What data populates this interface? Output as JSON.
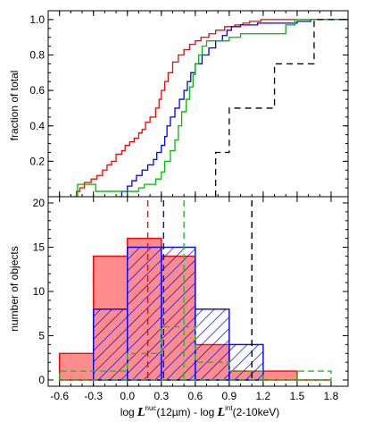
{
  "chart_data": [
    {
      "type": "line",
      "panel": "top",
      "step": true,
      "ylabel": "fraction of total",
      "xlim": [
        -0.7,
        1.95
      ],
      "ylim": [
        0,
        1.05
      ],
      "yticks": [
        0.2,
        0.4,
        0.6,
        0.8,
        1.0
      ],
      "ytick_labels": [
        "0.2",
        "0.4",
        "0.6",
        "0.8",
        "1.0"
      ],
      "grid": false,
      "series": [
        {
          "color": "#ff0000",
          "dash": "solid",
          "points": [
            [
              -0.48,
              0.0
            ],
            [
              -0.45,
              0.03
            ],
            [
              -0.42,
              0.05
            ],
            [
              -0.38,
              0.08
            ],
            [
              -0.32,
              0.1
            ],
            [
              -0.27,
              0.12
            ],
            [
              -0.22,
              0.15
            ],
            [
              -0.18,
              0.18
            ],
            [
              -0.14,
              0.2
            ],
            [
              -0.1,
              0.24
            ],
            [
              -0.05,
              0.26
            ],
            [
              -0.02,
              0.29
            ],
            [
              0.02,
              0.31
            ],
            [
              0.06,
              0.33
            ],
            [
              0.1,
              0.36
            ],
            [
              0.13,
              0.38
            ],
            [
              0.16,
              0.42
            ],
            [
              0.2,
              0.45
            ],
            [
              0.25,
              0.5
            ],
            [
              0.28,
              0.55
            ],
            [
              0.3,
              0.6
            ],
            [
              0.33,
              0.65
            ],
            [
              0.36,
              0.7
            ],
            [
              0.4,
              0.76
            ],
            [
              0.45,
              0.8
            ],
            [
              0.5,
              0.83
            ],
            [
              0.55,
              0.86
            ],
            [
              0.6,
              0.88
            ],
            [
              0.65,
              0.9
            ],
            [
              0.72,
              0.92
            ],
            [
              0.78,
              0.94
            ],
            [
              0.86,
              0.96
            ],
            [
              0.95,
              0.97
            ],
            [
              1.02,
              0.98
            ],
            [
              1.08,
              0.99
            ],
            [
              1.18,
              1.0
            ],
            [
              1.95,
              1.0
            ]
          ]
        },
        {
          "color": "#0000ff",
          "dash": "solid",
          "points": [
            [
              -0.08,
              0.0
            ],
            [
              -0.05,
              0.03
            ],
            [
              0.0,
              0.06
            ],
            [
              0.04,
              0.09
            ],
            [
              0.08,
              0.12
            ],
            [
              0.13,
              0.15
            ],
            [
              0.18,
              0.18
            ],
            [
              0.23,
              0.21
            ],
            [
              0.26,
              0.25
            ],
            [
              0.3,
              0.29
            ],
            [
              0.33,
              0.34
            ],
            [
              0.35,
              0.4
            ],
            [
              0.38,
              0.45
            ],
            [
              0.42,
              0.5
            ],
            [
              0.46,
              0.55
            ],
            [
              0.5,
              0.6
            ],
            [
              0.53,
              0.65
            ],
            [
              0.56,
              0.7
            ],
            [
              0.6,
              0.75
            ],
            [
              0.66,
              0.8
            ],
            [
              0.72,
              0.84
            ],
            [
              0.78,
              0.88
            ],
            [
              0.84,
              0.91
            ],
            [
              0.88,
              0.94
            ],
            [
              0.92,
              0.96
            ],
            [
              1.0,
              0.97
            ],
            [
              1.15,
              0.98
            ],
            [
              1.5,
              0.99
            ],
            [
              1.62,
              1.0
            ],
            [
              1.95,
              1.0
            ]
          ]
        },
        {
          "color": "#00bb00",
          "dash": "solid",
          "points": [
            [
              -0.48,
              0.0
            ],
            [
              -0.44,
              0.07
            ],
            [
              -0.3,
              0.07
            ],
            [
              -0.28,
              0.03
            ],
            [
              -0.26,
              0.03
            ],
            [
              0.1,
              0.05
            ],
            [
              0.15,
              0.07
            ],
            [
              0.25,
              0.1
            ],
            [
              0.3,
              0.14
            ],
            [
              0.33,
              0.2
            ],
            [
              0.38,
              0.26
            ],
            [
              0.42,
              0.32
            ],
            [
              0.45,
              0.4
            ],
            [
              0.48,
              0.48
            ],
            [
              0.52,
              0.55
            ],
            [
              0.55,
              0.62
            ],
            [
              0.58,
              0.69
            ],
            [
              0.6,
              0.75
            ],
            [
              0.63,
              0.8
            ],
            [
              0.66,
              0.85
            ],
            [
              0.7,
              0.88
            ],
            [
              0.9,
              0.9
            ],
            [
              1.0,
              0.92
            ],
            [
              1.4,
              0.97
            ],
            [
              1.48,
              1.0
            ],
            [
              1.95,
              1.0
            ]
          ]
        },
        {
          "color": "#000000",
          "dash": "dashed",
          "points": [
            [
              0.78,
              0.0
            ],
            [
              0.78,
              0.25
            ],
            [
              0.9,
              0.25
            ],
            [
              0.9,
              0.5
            ],
            [
              1.3,
              0.5
            ],
            [
              1.3,
              0.75
            ],
            [
              1.65,
              0.75
            ],
            [
              1.65,
              1.0
            ],
            [
              1.95,
              1.0
            ]
          ]
        }
      ]
    },
    {
      "type": "bar",
      "panel": "bottom",
      "histogram": true,
      "xlabel": "log L^nuc(12µm) - log L^int(2-10keV)",
      "ylabel": "number of objects",
      "xlim": [
        -0.7,
        1.95
      ],
      "ylim": [
        0,
        20
      ],
      "xticks": [
        -0.6,
        -0.3,
        0.0,
        0.3,
        0.6,
        0.9,
        1.2,
        1.5,
        1.8
      ],
      "xtick_labels": [
        "-0.6",
        "-0.3",
        "0.0",
        "0.3",
        "0.6",
        "0.9",
        "1.2",
        "1.5",
        "1.8"
      ],
      "yticks": [
        0,
        5,
        10,
        15,
        20
      ],
      "ytick_labels": [
        "0",
        "5",
        "10",
        "15",
        "20"
      ],
      "bin_edges": [
        -0.6,
        -0.3,
        0.0,
        0.3,
        0.6,
        0.9,
        1.2,
        1.5,
        1.8
      ],
      "series": [
        {
          "color": "#ff0000",
          "style": "filled",
          "counts": [
            3,
            14,
            16,
            14,
            4,
            1,
            1,
            0
          ],
          "median": 0.18
        },
        {
          "color": "#0000ff",
          "style": "hatched",
          "counts": [
            0,
            8,
            15,
            15,
            8,
            4,
            0,
            0
          ],
          "median": 0.32
        },
        {
          "color": "#00bb00",
          "style": "outline",
          "counts": [
            1,
            1,
            3,
            6,
            2,
            1,
            0,
            1
          ],
          "median": 0.5
        },
        {
          "color": "#000000",
          "style": "dashed",
          "counts": [
            0,
            0,
            0,
            0,
            0,
            0,
            0,
            0
          ],
          "median": 1.1
        }
      ]
    }
  ],
  "axis_text": {
    "top_ylabel": "fraction of total",
    "bottom_ylabel": "number of objects",
    "xlabel_prefix": "log ",
    "xlabel_L1": "L",
    "xlabel_sup1": "nuc",
    "xlabel_mid": "(12µm) - log ",
    "xlabel_L2": "L",
    "xlabel_sup2": "int",
    "xlabel_suffix": "(2-10keV)"
  }
}
